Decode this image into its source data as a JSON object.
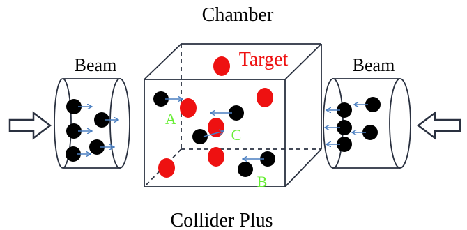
{
  "title": "Chamber",
  "caption": "Collider Plus",
  "beam_left_label": "Beam",
  "beam_right_label": "Beam",
  "target_label": "Target",
  "collision_labels": {
    "a": "A",
    "b": "B",
    "c": "C"
  },
  "colors": {
    "target": "#ee1111",
    "beam_particle": "#000000",
    "arrow": "#4a7fc1",
    "collision_label": "#66ee33",
    "target_label": "#ee1111",
    "outline": "#2a3140"
  },
  "icons": {
    "left_input": "hollow-arrow-right-icon",
    "right_input": "hollow-arrow-left-icon"
  }
}
